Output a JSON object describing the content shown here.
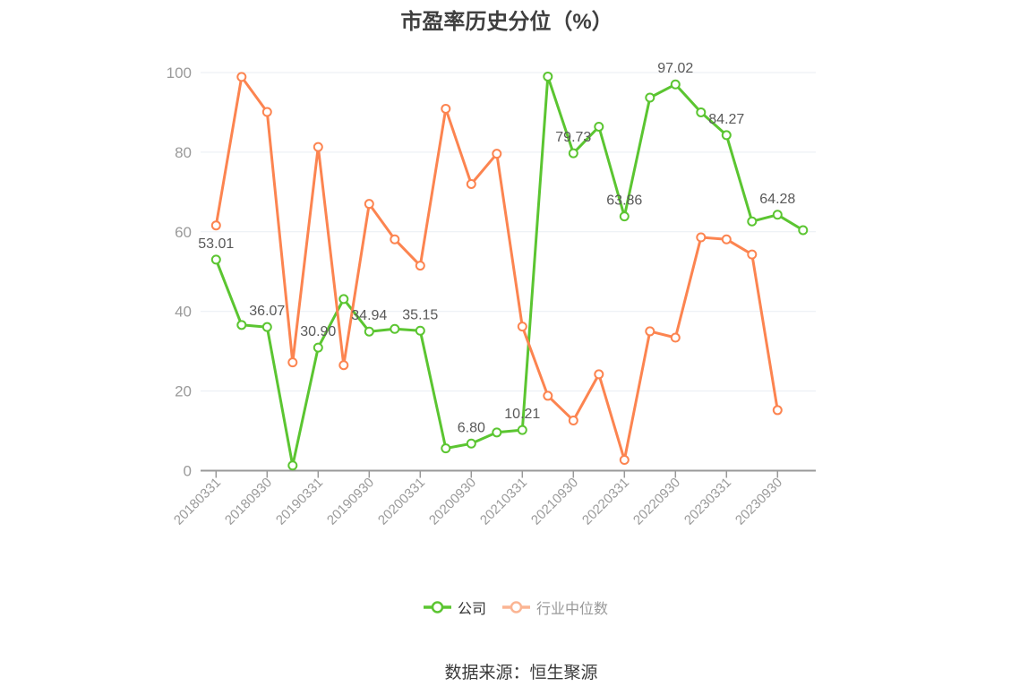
{
  "title": "市盈率历史分位（%）",
  "source_note": "数据来源：恒生聚源",
  "colors": {
    "company": "#5bc531",
    "industry": "#fc8450",
    "industry_legend_icon": "#fbb593",
    "grid": "#e9edf3",
    "axis": "#999999",
    "tick_label": "#9a9a9a",
    "data_label": "#595959",
    "title_text": "#3f3f3f",
    "legend_company_text": "#333333",
    "legend_industry_text": "#999999",
    "source_text": "#3a3a3a",
    "background": "#ffffff"
  },
  "legend": {
    "items": [
      {
        "label": "公司"
      },
      {
        "label": "行业中位数"
      }
    ]
  },
  "chart_data": {
    "type": "line",
    "title": "市盈率历史分位（%）",
    "x": [
      "20180331",
      "20180630",
      "20180930",
      "20181231",
      "20190331",
      "20190630",
      "20190930",
      "20191231",
      "20200331",
      "20200630",
      "20200930",
      "20201231",
      "20210331",
      "20210630",
      "20210930",
      "20211231",
      "20220331",
      "20220630",
      "20220930",
      "20221231",
      "20230331",
      "20230630",
      "20230930",
      "20231231"
    ],
    "x_tick_labels": [
      "20180331",
      "20180930",
      "20190331",
      "20190930",
      "20200331",
      "20200930",
      "20210331",
      "20210930",
      "20220331",
      "20220930",
      "20230331",
      "20230930"
    ],
    "ylim": [
      0,
      100
    ],
    "yticks": [
      0,
      20,
      40,
      60,
      80,
      100
    ],
    "grid": true,
    "legend_position": "bottom",
    "series": [
      {
        "name": "公司",
        "color": "#5bc531",
        "values": [
          53.01,
          36.6,
          36.07,
          1.3,
          30.9,
          43.1,
          34.94,
          35.6,
          35.15,
          5.6,
          6.8,
          9.6,
          10.21,
          99.0,
          79.73,
          86.4,
          63.86,
          93.7,
          97.02,
          90.0,
          84.27,
          62.6,
          64.28,
          60.4
        ],
        "point_labels": {
          "0": "53.01",
          "2": "36.07",
          "4": "30.90",
          "6": "34.94",
          "8": "35.15",
          "10": "6.80",
          "12": "10.21",
          "14": "79.73",
          "16": "63.86",
          "18": "97.02",
          "20": "84.27",
          "22": "64.28"
        }
      },
      {
        "name": "行业中位数",
        "color": "#fc8450",
        "values": [
          61.6,
          98.9,
          90.1,
          27.2,
          81.3,
          26.5,
          67.0,
          58.1,
          51.5,
          90.9,
          72.0,
          79.6,
          36.2,
          18.8,
          12.6,
          24.2,
          2.7,
          35.0,
          33.4,
          58.6,
          58.1,
          54.3,
          15.2,
          null
        ]
      }
    ]
  }
}
